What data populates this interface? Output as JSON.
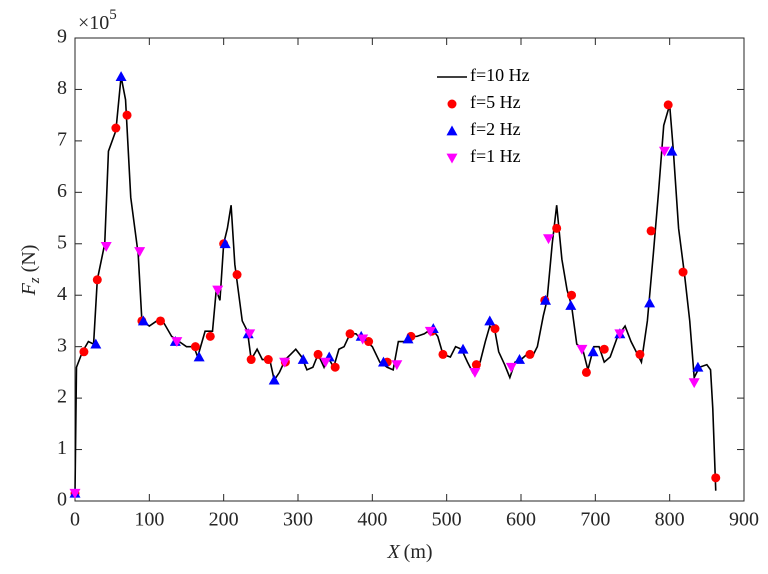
{
  "chart_data": {
    "type": "line",
    "xlabel": {
      "main": "X",
      "unit": "(m)"
    },
    "ylabel": {
      "main": "F",
      "sub": "z",
      "unit": "(N)"
    },
    "y_multiplier": {
      "base": "×10",
      "exponent": "5"
    },
    "xlim": [
      0,
      900
    ],
    "xticks": [
      0,
      100,
      200,
      300,
      400,
      500,
      600,
      700,
      800,
      900
    ],
    "ylim": [
      0,
      9
    ],
    "yticks": [
      0,
      1,
      2,
      3,
      4,
      5,
      6,
      7,
      8,
      9
    ],
    "legend": "upper center",
    "series": [
      {
        "name": "f=10 Hz",
        "color": "#000000",
        "marker": "none",
        "x": [
          0,
          2,
          10,
          18,
          25,
          30,
          40,
          45,
          55,
          62,
          68,
          75,
          85,
          90,
          100,
          110,
          120,
          130,
          140,
          150,
          160,
          165,
          175,
          185,
          190,
          195,
          200,
          205,
          210,
          215,
          225,
          232,
          237,
          245,
          252,
          262,
          268,
          275,
          283,
          290,
          297,
          305,
          312,
          320,
          327,
          335,
          340,
          348,
          355,
          362,
          370,
          378,
          385,
          392,
          400,
          410,
          420,
          428,
          435,
          445,
          452,
          460,
          470,
          480,
          488,
          495,
          505,
          512,
          520,
          528,
          535,
          545,
          552,
          558,
          565,
          570,
          578,
          585,
          592,
          600,
          608,
          615,
          622,
          630,
          635,
          642,
          648,
          655,
          662,
          668,
          675,
          683,
          690,
          698,
          705,
          712,
          720,
          730,
          740,
          748,
          755,
          762,
          770,
          778,
          785,
          792,
          800,
          805,
          812,
          820,
          827,
          833,
          840,
          850,
          855,
          858,
          862
        ],
        "values": [
          0.15,
          2.6,
          2.9,
          3.1,
          3.05,
          4.3,
          5.0,
          6.8,
          7.2,
          8.25,
          7.8,
          5.9,
          4.8,
          3.5,
          3.4,
          3.5,
          3.45,
          3.2,
          3.1,
          3.0,
          3.0,
          2.8,
          3.3,
          3.3,
          4.1,
          3.9,
          5.0,
          5.3,
          5.75,
          4.6,
          3.5,
          3.3,
          2.75,
          2.95,
          2.75,
          2.75,
          2.35,
          2.5,
          2.75,
          2.85,
          2.95,
          2.8,
          2.55,
          2.6,
          2.85,
          2.6,
          2.8,
          2.6,
          2.95,
          3.0,
          3.25,
          3.25,
          3.15,
          3.1,
          3.0,
          2.7,
          2.6,
          2.55,
          3.1,
          3.1,
          3.2,
          3.2,
          3.25,
          3.35,
          3.2,
          2.85,
          2.8,
          3.0,
          2.95,
          2.7,
          2.5,
          2.7,
          3.1,
          3.4,
          3.3,
          2.9,
          2.65,
          2.4,
          2.7,
          2.75,
          2.85,
          2.8,
          3.0,
          3.6,
          3.9,
          5.0,
          5.75,
          4.7,
          4.1,
          3.8,
          3.05,
          2.95,
          2.55,
          3.0,
          3.0,
          2.7,
          2.8,
          3.2,
          3.4,
          3.1,
          2.9,
          2.7,
          3.5,
          4.8,
          6.0,
          7.3,
          7.7,
          6.8,
          5.3,
          4.4,
          3.5,
          2.4,
          2.6,
          2.65,
          2.55,
          1.8,
          0.2
        ]
      },
      {
        "name": "f=5 Hz",
        "color": "#ff0000",
        "marker": "o",
        "x": [
          0,
          12,
          30,
          55,
          70,
          90,
          115,
          162,
          182,
          200,
          218,
          237,
          260,
          283,
          327,
          350,
          370,
          395,
          420,
          452,
          480,
          495,
          540,
          565,
          612,
          632,
          648,
          668,
          688,
          712,
          760,
          775,
          798,
          818,
          862
        ],
        "values": [
          0.15,
          2.9,
          4.3,
          7.25,
          7.5,
          3.5,
          3.5,
          3.0,
          3.2,
          5.0,
          4.4,
          2.75,
          2.75,
          2.7,
          2.85,
          2.6,
          3.25,
          3.1,
          2.7,
          3.2,
          3.3,
          2.85,
          2.65,
          3.35,
          2.85,
          3.9,
          5.3,
          4.0,
          2.5,
          2.95,
          2.85,
          5.25,
          7.7,
          4.45,
          0.45
        ]
      },
      {
        "name": "f=2 Hz",
        "color": "#0000ff",
        "marker": "^",
        "x": [
          0,
          28,
          62,
          92,
          135,
          167,
          202,
          233,
          268,
          307,
          342,
          385,
          415,
          448,
          482,
          522,
          558,
          598,
          633,
          667,
          697,
          733,
          773,
          803,
          838
        ],
        "values": [
          0.15,
          3.05,
          8.25,
          3.5,
          3.1,
          2.8,
          5.0,
          3.25,
          2.35,
          2.75,
          2.8,
          3.2,
          2.7,
          3.15,
          3.35,
          2.95,
          3.5,
          2.75,
          3.9,
          3.8,
          2.9,
          3.25,
          3.85,
          6.8,
          2.6
        ]
      },
      {
        "name": "f=1 Hz",
        "color": "#ff00ff",
        "marker": "v",
        "x": [
          0,
          42,
          87,
          137,
          192,
          235,
          282,
          337,
          387,
          433,
          478,
          538,
          587,
          637,
          682,
          733,
          793,
          833
        ],
        "values": [
          0.15,
          4.95,
          4.85,
          3.1,
          4.1,
          3.25,
          2.7,
          2.7,
          3.15,
          2.65,
          3.3,
          2.5,
          2.6,
          5.1,
          2.95,
          3.25,
          6.8,
          2.3
        ]
      }
    ]
  }
}
